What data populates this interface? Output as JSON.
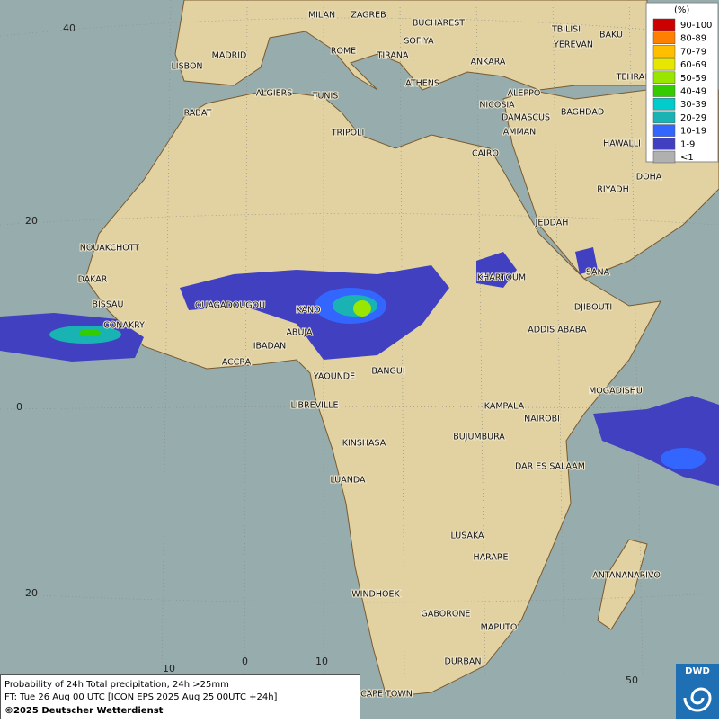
{
  "map": {
    "legend": {
      "unit": "(%)",
      "items": [
        {
          "label": "90-100",
          "color": "#cc0000"
        },
        {
          "label": "80-89",
          "color": "#ff7f00"
        },
        {
          "label": "70-79",
          "color": "#ffbf00"
        },
        {
          "label": "60-69",
          "color": "#e6e600"
        },
        {
          "label": "50-59",
          "color": "#99e600"
        },
        {
          "label": "40-49",
          "color": "#33cc00"
        },
        {
          "label": "30-39",
          "color": "#00cccc"
        },
        {
          "label": "20-29",
          "color": "#19b3b3"
        },
        {
          "label": "10-19",
          "color": "#3366ff"
        },
        {
          "label": "1-9",
          "color": "#4040c0"
        },
        {
          "label": "<1",
          "color": "#b0b0b0"
        }
      ]
    },
    "cities": [
      "MILAN",
      "ZAGREB",
      "BUCHAREST",
      "TBILISI",
      "BAKU",
      "YEREVAN",
      "MADRID",
      "ROME",
      "SOFIYA",
      "TIRANA",
      "ANKARA",
      "TEHRAN",
      "LISBON",
      "ATHENS",
      "ALGIERS",
      "TUNIS",
      "ALEPPO",
      "RABAT",
      "NICOSIA",
      "BAGHDAD",
      "TRIPOLI",
      "DAMASCUS",
      "AMMAN",
      "HAWALLI",
      "CAIRO",
      "DOHA",
      "RIYADH",
      "JEDDAH",
      "NOUAKCHOTT",
      "DAKAR",
      "SANA",
      "KHARTOUM",
      "BISSAU",
      "OUAGADOUGOU",
      "KANO",
      "DJIBOUTI",
      "CONAKRY",
      "ABUJA",
      "ADDIS ABABA",
      "IBADAN",
      "ACCRA",
      "BANGUI",
      "YAOUNDE",
      "MOGADISHU",
      "LIBREVILLE",
      "KAMPALA",
      "NAIROBI",
      "KINSHASA",
      "BUJUMBURA",
      "DAR ES SALAAM",
      "LUANDA",
      "LUSAKA",
      "HARARE",
      "ANTANANARIVO",
      "WINDHOEK",
      "GABORONE",
      "MAPUTO",
      "DURBAN",
      "CAPE TOWN"
    ],
    "lat_labels": [
      40,
      20,
      0,
      20
    ],
    "lon_labels": [
      10,
      0,
      10,
      50
    ],
    "caption": [
      "Probability of 24h Total precipitation, 24h >25mm",
      "FT: Tue 26 Aug 00 UTC [ICON EPS 2025 Aug 25 00UTC +24h]",
      "©2025 Deutscher Wetterdienst"
    ],
    "logo": "DWD"
  }
}
